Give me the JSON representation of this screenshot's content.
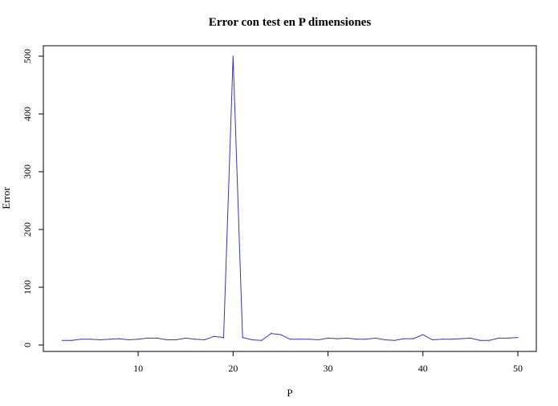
{
  "chart_data": {
    "type": "line",
    "title": "Error con test en P dimensiones",
    "xlabel": "P",
    "ylabel": "Error",
    "xlim": [
      2,
      50
    ],
    "ylim": [
      0,
      500
    ],
    "x_ticks": [
      "10",
      "20",
      "30",
      "40",
      "50"
    ],
    "y_ticks": [
      "0",
      "100",
      "200",
      "300",
      "400",
      "500"
    ],
    "grid": false,
    "line_color": "#3333cc",
    "series": [
      {
        "x": [
          2,
          3,
          4,
          5,
          6,
          7,
          8,
          9,
          10,
          11,
          12,
          13,
          14,
          15,
          16,
          17,
          18,
          19,
          20,
          21,
          22,
          23,
          24,
          25,
          26,
          27,
          28,
          29,
          30,
          31,
          32,
          33,
          34,
          35,
          36,
          37,
          38,
          39,
          40,
          41,
          42,
          43,
          44,
          45,
          46,
          47,
          48,
          49,
          50
        ],
        "values": [
          8,
          8,
          10,
          10,
          9,
          10,
          11,
          9,
          10,
          12,
          12,
          9,
          9,
          12,
          10,
          9,
          15,
          13,
          500,
          13,
          9,
          8,
          20,
          18,
          10,
          10,
          10,
          9,
          12,
          11,
          12,
          10,
          10,
          12,
          9,
          8,
          11,
          11,
          18,
          9,
          10,
          10,
          11,
          12,
          8,
          8,
          12,
          12,
          13
        ]
      }
    ]
  }
}
